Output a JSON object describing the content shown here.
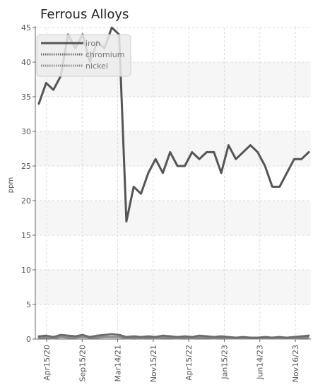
{
  "chart_data": {
    "type": "line",
    "title": "Ferrous Alloys",
    "ylabel": "ppm",
    "xlabel": "",
    "ylim": [
      0,
      45
    ],
    "y_ticks": [
      0,
      5,
      10,
      15,
      20,
      25,
      30,
      35,
      40,
      45
    ],
    "x_tick_labels": [
      "Apr15/20",
      "Sep15/20",
      "Mar14/21",
      "Nov15/21",
      "Apr15/22",
      "Jan15/23",
      "Jun14/23",
      "Nov16/23"
    ],
    "grid": true,
    "legend_position": "top-left",
    "series": [
      {
        "name": "iron",
        "color": "#555555",
        "style": "solid",
        "values": [
          34,
          37,
          36,
          38,
          44,
          42,
          44,
          40,
          43,
          42,
          45,
          44,
          17,
          22,
          21,
          24,
          26,
          24,
          27,
          25,
          25,
          27,
          26,
          27,
          27,
          24,
          28,
          26,
          27,
          28,
          27,
          25,
          22,
          22,
          24,
          26,
          26,
          27
        ]
      },
      {
        "name": "chromium",
        "color": "#6b6b6b",
        "style": "dotted",
        "values": [
          0.4,
          0.5,
          0.3,
          0.6,
          0.5,
          0.4,
          0.6,
          0.3,
          0.5,
          0.6,
          0.7,
          0.6,
          0.3,
          0.4,
          0.3,
          0.4,
          0.3,
          0.5,
          0.4,
          0.3,
          0.4,
          0.3,
          0.5,
          0.4,
          0.3,
          0.4,
          0.3,
          0.2,
          0.3,
          0.2,
          0.2,
          0.3,
          0.2,
          0.3,
          0.2,
          0.3,
          0.4,
          0.5
        ]
      },
      {
        "name": "nickel",
        "color": "#8a8a8a",
        "style": "dotted",
        "values": [
          0.2,
          0.2,
          0.1,
          0.3,
          0.2,
          0.2,
          0.3,
          0.2,
          0.2,
          0.3,
          0.3,
          0.3,
          0.1,
          0.2,
          0.1,
          0.2,
          0.1,
          0.2,
          0.2,
          0.1,
          0.2,
          0.1,
          0.2,
          0.2,
          0.1,
          0.2,
          0.1,
          0.1,
          0.1,
          0.1,
          0.1,
          0.1,
          0.1,
          0.1,
          0.1,
          0.1,
          0.2,
          0.2
        ]
      }
    ]
  }
}
